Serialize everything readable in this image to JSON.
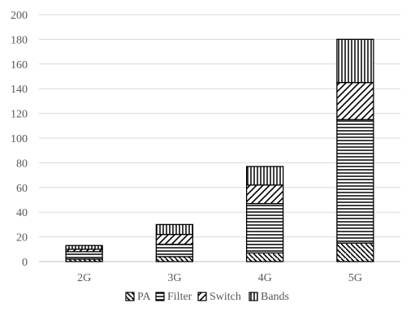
{
  "chart_data": {
    "type": "bar",
    "stacked": true,
    "categories": [
      "2G",
      "3G",
      "4G",
      "5G"
    ],
    "series": [
      {
        "name": "PA",
        "values": [
          2,
          4,
          7,
          15
        ],
        "pattern": "hatch-backslash"
      },
      {
        "name": "Filter",
        "values": [
          6,
          10,
          40,
          100
        ],
        "pattern": "hatch-horizontal"
      },
      {
        "name": "Switch",
        "values": [
          2,
          8,
          15,
          30
        ],
        "pattern": "hatch-forward"
      },
      {
        "name": "Bands",
        "values": [
          3,
          8,
          15,
          35
        ],
        "pattern": "hatch-vertical"
      }
    ],
    "ylim": [
      0,
      200
    ],
    "yticks": [
      "0",
      "20",
      "40",
      "60",
      "80",
      "100",
      "120",
      "140",
      "160",
      "180",
      "200"
    ],
    "grid": true,
    "legend_position": "bottom",
    "colors": {
      "stroke": "#000000",
      "grid": "#d9d9d9",
      "text": "#595959"
    }
  }
}
